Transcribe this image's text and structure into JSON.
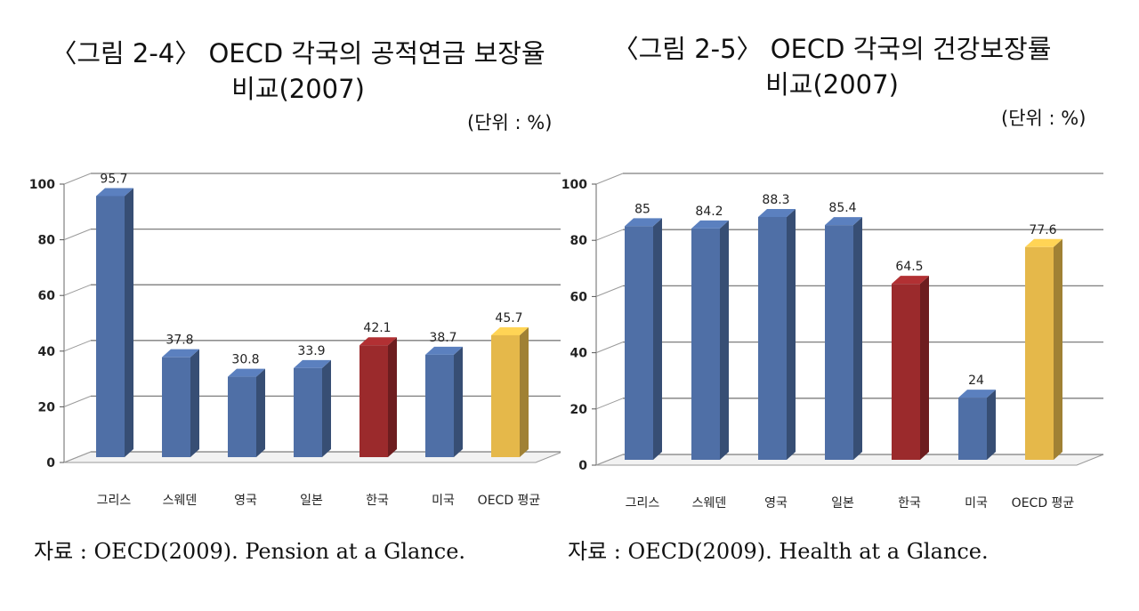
{
  "chart_data": [
    {
      "type": "bar",
      "title_line1": "〈그림 2-4〉 OECD 각국의 공적연금 보장율",
      "title_line2": "비교(2007)",
      "unit_note": "(단위 : %)",
      "categories": [
        "그리스",
        "스웨덴",
        "영국",
        "일본",
        "한국",
        "미국",
        "OECD 평균"
      ],
      "values": [
        95.7,
        37.8,
        30.8,
        33.9,
        42.1,
        38.7,
        45.7
      ],
      "data_labels": [
        "95.7",
        "37.8",
        "30.8",
        "33.9",
        "42.1",
        "38.7",
        "45.7"
      ],
      "ylim": [
        0,
        100
      ],
      "yticks": [
        "0",
        "20",
        "40",
        "60",
        "80",
        "100"
      ],
      "grid": true,
      "bar_colors": [
        "#4f6fa6",
        "#4f6fa6",
        "#4f6fa6",
        "#4f6fa6",
        "#9b2a2c",
        "#4f6fa6",
        "#e5b84a"
      ],
      "source": "자료 : OECD(2009). Pension at a Glance."
    },
    {
      "type": "bar",
      "title_line1": "〈그림 2-5〉 OECD 각국의 건강보장률",
      "title_line2": "비교(2007)",
      "unit_note": "(단위 : %)",
      "categories": [
        "그리스",
        "스웨덴",
        "영국",
        "일본",
        "한국",
        "미국",
        "OECD 평균"
      ],
      "values": [
        85,
        84.2,
        88.3,
        85.4,
        64.5,
        24,
        77.6
      ],
      "data_labels": [
        "85",
        "84.2",
        "88.3",
        "85.4",
        "64.5",
        "24",
        "77.6"
      ],
      "ylim": [
        0,
        100
      ],
      "yticks": [
        "0",
        "20",
        "40",
        "60",
        "80",
        "100"
      ],
      "grid": true,
      "bar_colors": [
        "#4f6fa6",
        "#4f6fa6",
        "#4f6fa6",
        "#4f6fa6",
        "#9b2a2c",
        "#4f6fa6",
        "#e5b84a"
      ],
      "source": "자료 : OECD(2009). Health at a Glance."
    }
  ]
}
